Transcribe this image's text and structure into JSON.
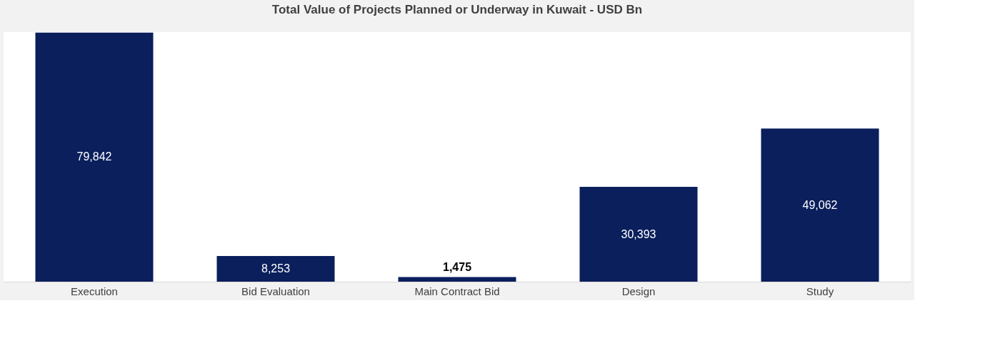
{
  "chart_data": {
    "type": "bar",
    "title": "Total Value of Projects Planned or Underway in Kuwait - USD Bn",
    "categories": [
      "Execution",
      "Bid Evaluation",
      "Main Contract Bid",
      "Design",
      "Study"
    ],
    "values": [
      79842,
      8253,
      1475,
      30393,
      49062
    ],
    "color": "#0a1f5c",
    "value_labels": [
      "79,842",
      "8,253",
      "1,475",
      "30,393",
      "49,062"
    ]
  }
}
